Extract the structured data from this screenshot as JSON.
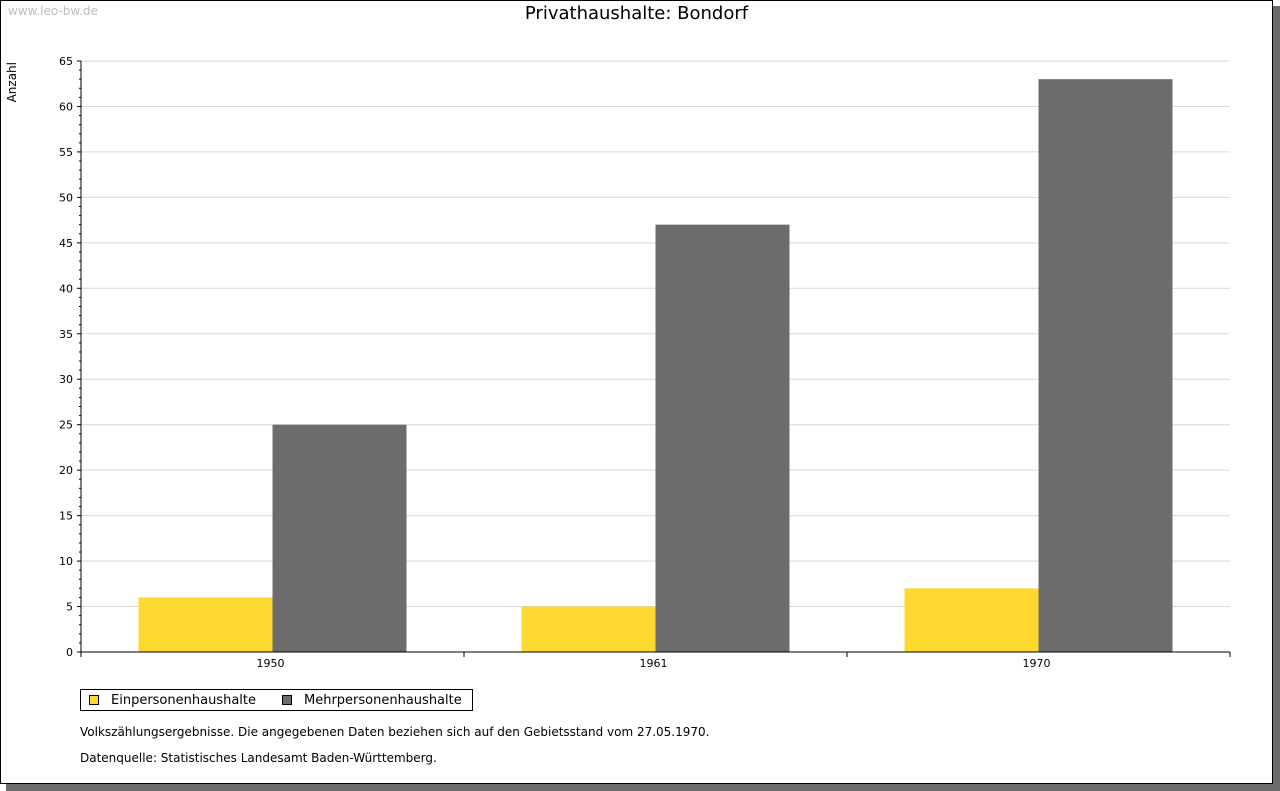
{
  "watermark": "www.leo-bw.de",
  "colors": {
    "einpersonen": "#fdd82f",
    "mehrpersonen": "#6c6c6c",
    "grid": "#d9d9d9"
  },
  "chart_data": {
    "type": "bar",
    "title": "Privathaushalte: Bondorf",
    "xlabel": "",
    "ylabel": "Anzahl",
    "categories": [
      "1950",
      "1961",
      "1970"
    ],
    "series": [
      {
        "name": "Einpersonenhaushalte",
        "values": [
          6,
          5,
          7
        ]
      },
      {
        "name": "Mehrpersonenhaushalte",
        "values": [
          25,
          47,
          63
        ]
      }
    ],
    "ylim": [
      0,
      65
    ],
    "yticks": [
      0,
      5,
      10,
      15,
      20,
      25,
      30,
      35,
      40,
      45,
      50,
      55,
      60,
      65
    ],
    "grid": true,
    "legend": "bottom-left"
  },
  "notes": {
    "line1": "Volkszählungsergebnisse. Die angegebenen Daten beziehen sich auf den Gebietsstand vom 27.05.1970.",
    "line2": "Datenquelle: Statistisches Landesamt Baden-Württemberg."
  }
}
